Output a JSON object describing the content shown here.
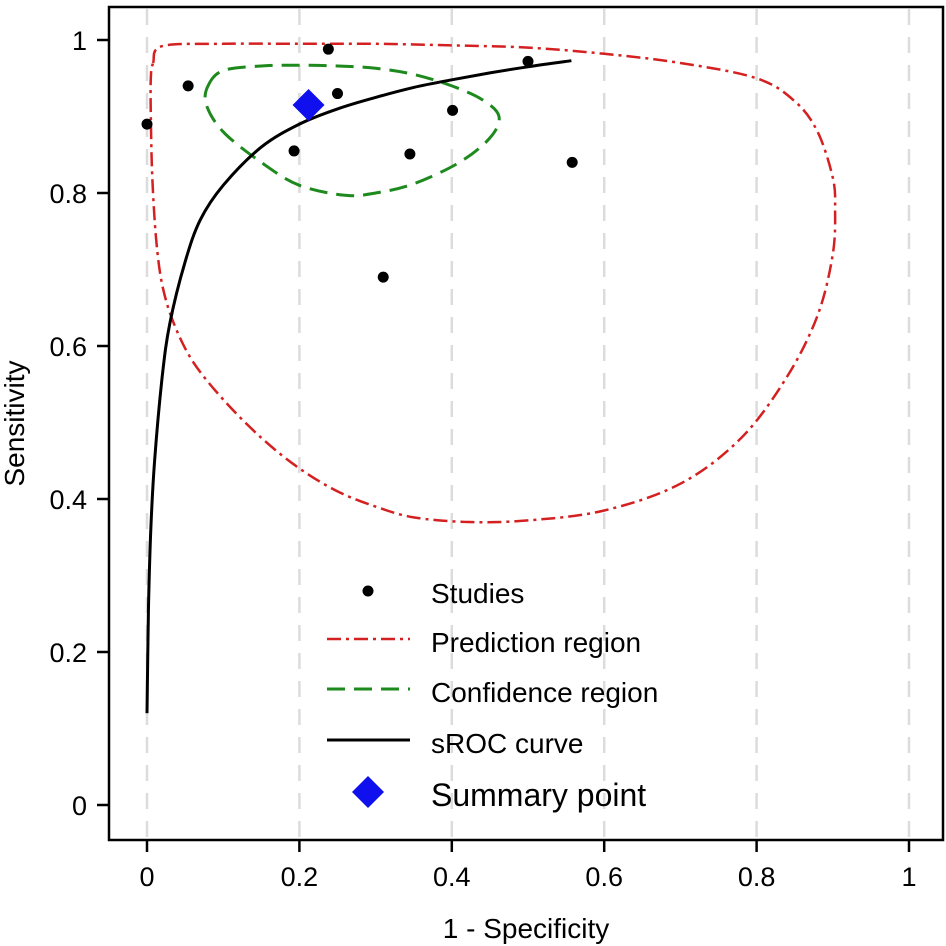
{
  "chart_data": {
    "type": "scatter",
    "xlabel": "1 - Specificity",
    "ylabel": "Sensitivity",
    "xlim": [
      0,
      1
    ],
    "ylim": [
      0,
      1
    ],
    "x_ticks": [
      "0",
      "0.2",
      "0.4",
      "0.6",
      "0.8",
      "1"
    ],
    "y_ticks": [
      "0",
      "0.2",
      "0.4",
      "0.6",
      "0.8",
      "1"
    ],
    "grid": "vertical dashed",
    "legend_placement": "bottom-center",
    "colors": {
      "studies": "#000000",
      "prediction": "#d42020",
      "confidence": "#1e8a1e",
      "sroc": "#000000",
      "summary": "#1010ee",
      "grid": "#dcdcdc"
    },
    "studies": [
      {
        "x": 0.0,
        "y": 0.89
      },
      {
        "x": 0.054,
        "y": 0.94
      },
      {
        "x": 0.193,
        "y": 0.855
      },
      {
        "x": 0.238,
        "y": 0.988
      },
      {
        "x": 0.25,
        "y": 0.93
      },
      {
        "x": 0.31,
        "y": 0.69
      },
      {
        "x": 0.345,
        "y": 0.851
      },
      {
        "x": 0.401,
        "y": 0.908
      },
      {
        "x": 0.5,
        "y": 0.972
      },
      {
        "x": 0.558,
        "y": 0.84
      }
    ],
    "summary_point": {
      "x": 0.212,
      "y": 0.915
    },
    "sroc_curve": [
      {
        "x": 0.0,
        "y": 0.12
      },
      {
        "x": 0.002,
        "y": 0.26
      },
      {
        "x": 0.005,
        "y": 0.36
      },
      {
        "x": 0.01,
        "y": 0.45
      },
      {
        "x": 0.02,
        "y": 0.56
      },
      {
        "x": 0.03,
        "y": 0.63
      },
      {
        "x": 0.05,
        "y": 0.71
      },
      {
        "x": 0.07,
        "y": 0.765
      },
      {
        "x": 0.1,
        "y": 0.81
      },
      {
        "x": 0.15,
        "y": 0.86
      },
      {
        "x": 0.2,
        "y": 0.89
      },
      {
        "x": 0.25,
        "y": 0.91
      },
      {
        "x": 0.3,
        "y": 0.925
      },
      {
        "x": 0.35,
        "y": 0.938
      },
      {
        "x": 0.4,
        "y": 0.948
      },
      {
        "x": 0.45,
        "y": 0.957
      },
      {
        "x": 0.5,
        "y": 0.965
      },
      {
        "x": 0.557,
        "y": 0.973
      }
    ],
    "confidence_region": [
      {
        "x": 0.08,
        "y": 0.94
      },
      {
        "x": 0.1,
        "y": 0.96
      },
      {
        "x": 0.15,
        "y": 0.966
      },
      {
        "x": 0.2,
        "y": 0.967
      },
      {
        "x": 0.25,
        "y": 0.966
      },
      {
        "x": 0.3,
        "y": 0.963
      },
      {
        "x": 0.35,
        "y": 0.955
      },
      {
        "x": 0.4,
        "y": 0.94
      },
      {
        "x": 0.44,
        "y": 0.922
      },
      {
        "x": 0.462,
        "y": 0.9
      },
      {
        "x": 0.45,
        "y": 0.872
      },
      {
        "x": 0.41,
        "y": 0.84
      },
      {
        "x": 0.35,
        "y": 0.812
      },
      {
        "x": 0.3,
        "y": 0.8
      },
      {
        "x": 0.26,
        "y": 0.797
      },
      {
        "x": 0.2,
        "y": 0.81
      },
      {
        "x": 0.15,
        "y": 0.84
      },
      {
        "x": 0.1,
        "y": 0.88
      },
      {
        "x": 0.078,
        "y": 0.915
      }
    ],
    "prediction_region": [
      {
        "x": 0.008,
        "y": 0.97
      },
      {
        "x": 0.02,
        "y": 0.992
      },
      {
        "x": 0.1,
        "y": 0.995
      },
      {
        "x": 0.2,
        "y": 0.995
      },
      {
        "x": 0.3,
        "y": 0.995
      },
      {
        "x": 0.4,
        "y": 0.993
      },
      {
        "x": 0.5,
        "y": 0.99
      },
      {
        "x": 0.6,
        "y": 0.982
      },
      {
        "x": 0.7,
        "y": 0.97
      },
      {
        "x": 0.8,
        "y": 0.95
      },
      {
        "x": 0.85,
        "y": 0.92
      },
      {
        "x": 0.88,
        "y": 0.88
      },
      {
        "x": 0.9,
        "y": 0.82
      },
      {
        "x": 0.903,
        "y": 0.78
      },
      {
        "x": 0.9,
        "y": 0.72
      },
      {
        "x": 0.88,
        "y": 0.64
      },
      {
        "x": 0.84,
        "y": 0.56
      },
      {
        "x": 0.78,
        "y": 0.48
      },
      {
        "x": 0.7,
        "y": 0.42
      },
      {
        "x": 0.6,
        "y": 0.385
      },
      {
        "x": 0.5,
        "y": 0.372
      },
      {
        "x": 0.42,
        "y": 0.37
      },
      {
        "x": 0.35,
        "y": 0.376
      },
      {
        "x": 0.3,
        "y": 0.39
      },
      {
        "x": 0.25,
        "y": 0.41
      },
      {
        "x": 0.2,
        "y": 0.44
      },
      {
        "x": 0.15,
        "y": 0.48
      },
      {
        "x": 0.1,
        "y": 0.53
      },
      {
        "x": 0.06,
        "y": 0.58
      },
      {
        "x": 0.035,
        "y": 0.63
      },
      {
        "x": 0.02,
        "y": 0.68
      },
      {
        "x": 0.012,
        "y": 0.74
      },
      {
        "x": 0.007,
        "y": 0.82
      },
      {
        "x": 0.005,
        "y": 0.9
      },
      {
        "x": 0.005,
        "y": 0.95
      }
    ],
    "legend": [
      {
        "key": "studies",
        "label": "Studies"
      },
      {
        "key": "prediction",
        "label": "Prediction region"
      },
      {
        "key": "confidence",
        "label": "Confidence region"
      },
      {
        "key": "sroc",
        "label": "sROC curve"
      },
      {
        "key": "summary",
        "label": "Summary point"
      }
    ]
  }
}
